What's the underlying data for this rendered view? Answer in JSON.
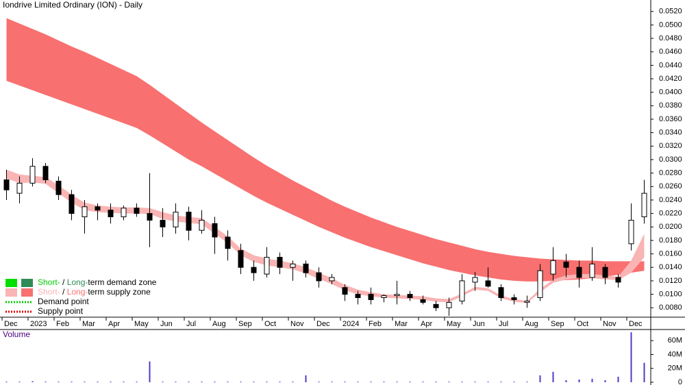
{
  "chart_data": [
    {
      "type": "candlestick",
      "title": "Iondrive Limited Ordinary (ION) - Daily",
      "categories": [
        "Dec",
        null,
        "2023",
        null,
        "Feb",
        null,
        "Mar",
        null,
        "Apr",
        null,
        "May",
        null,
        "Jun",
        null,
        "Jul",
        null,
        "Aug",
        null,
        "Sep",
        null,
        "Oct",
        null,
        "Nov",
        null,
        "Dec",
        null,
        "2024",
        null,
        "Feb",
        null,
        "Mar",
        null,
        "Apr",
        null,
        "May",
        null,
        "Jun",
        null,
        "Jul",
        null,
        "Aug",
        null,
        "Sep",
        null,
        "Oct",
        null,
        "Nov",
        null,
        "Dec",
        null
      ],
      "open": [
        0.027,
        0.025,
        0.0265,
        0.029,
        0.0268,
        0.0248,
        0.0215,
        0.023,
        0.0225,
        0.0215,
        0.0228,
        0.022,
        0.021,
        0.02,
        0.0222,
        0.0195,
        0.0205,
        0.0185,
        0.0165,
        0.014,
        0.013,
        0.0155,
        0.014,
        0.0145,
        0.0132,
        0.012,
        0.011,
        0.01,
        0.01,
        0.0095,
        0.0098,
        0.01,
        0.0092,
        0.0085,
        0.008,
        0.009,
        0.0118,
        0.012,
        0.011,
        0.0095,
        0.0088,
        0.0095,
        0.013,
        0.0148,
        0.014,
        0.0125,
        0.014,
        0.0125,
        0.0175,
        0.0215
      ],
      "high": [
        0.0285,
        0.0275,
        0.0302,
        0.0295,
        0.0275,
        0.0255,
        0.024,
        0.0235,
        0.0235,
        0.0232,
        0.0235,
        0.028,
        0.0228,
        0.0235,
        0.023,
        0.0225,
        0.0215,
        0.0195,
        0.0175,
        0.015,
        0.017,
        0.0162,
        0.015,
        0.015,
        0.014,
        0.013,
        0.0115,
        0.0105,
        0.011,
        0.01,
        0.012,
        0.0105,
        0.0098,
        0.009,
        0.0095,
        0.013,
        0.0133,
        0.014,
        0.0115,
        0.01,
        0.0098,
        0.0145,
        0.017,
        0.016,
        0.015,
        0.017,
        0.0145,
        0.013,
        0.0235,
        0.027
      ],
      "low": [
        0.024,
        0.0235,
        0.026,
        0.0265,
        0.024,
        0.021,
        0.019,
        0.021,
        0.0205,
        0.021,
        0.0215,
        0.017,
        0.0185,
        0.019,
        0.018,
        0.019,
        0.016,
        0.015,
        0.013,
        0.012,
        0.0125,
        0.013,
        0.012,
        0.0125,
        0.011,
        0.0115,
        0.009,
        0.0085,
        0.0085,
        0.0088,
        0.0085,
        0.009,
        0.0085,
        0.0075,
        0.0068,
        0.0085,
        0.0105,
        0.011,
        0.009,
        0.0085,
        0.008,
        0.009,
        0.012,
        0.0125,
        0.011,
        0.012,
        0.0115,
        0.011,
        0.0165,
        0.0205
      ],
      "close": [
        0.0255,
        0.0265,
        0.029,
        0.027,
        0.0248,
        0.022,
        0.023,
        0.0225,
        0.0215,
        0.0228,
        0.022,
        0.021,
        0.02,
        0.0222,
        0.0195,
        0.021,
        0.0185,
        0.0168,
        0.014,
        0.0132,
        0.0155,
        0.014,
        0.0145,
        0.0132,
        0.012,
        0.0125,
        0.01,
        0.0095,
        0.0092,
        0.0098,
        0.01,
        0.0095,
        0.0088,
        0.008,
        0.0088,
        0.012,
        0.0125,
        0.0112,
        0.0095,
        0.0092,
        0.009,
        0.0135,
        0.015,
        0.014,
        0.0125,
        0.0145,
        0.0125,
        0.0118,
        0.021,
        0.025
      ],
      "up_color": "#ffffff",
      "down_color": "#000000",
      "bands": [
        {
          "color": "#f87070",
          "upper": [
            0.051,
            0.0502,
            0.0494,
            0.0486,
            0.0477,
            0.0468,
            0.046,
            0.0451,
            0.0442,
            0.0433,
            0.0424,
            0.0411,
            0.0397,
            0.0383,
            0.0369,
            0.0355,
            0.0342,
            0.0329,
            0.0316,
            0.0303,
            0.0291,
            0.028,
            0.0269,
            0.0259,
            0.0249,
            0.0239,
            0.023,
            0.0222,
            0.0214,
            0.0207,
            0.02,
            0.0194,
            0.0188,
            0.0182,
            0.0177,
            0.0172,
            0.0167,
            0.0163,
            0.016,
            0.0157,
            0.0155,
            0.0153,
            0.0152,
            0.0151,
            0.015,
            0.015,
            0.0149,
            0.0149,
            0.0149,
            0.0149
          ],
          "lower": [
            0.0417,
            0.041,
            0.0403,
            0.0396,
            0.0389,
            0.0382,
            0.0375,
            0.0368,
            0.0361,
            0.0354,
            0.0347,
            0.0336,
            0.0324,
            0.0312,
            0.03,
            0.029,
            0.0279,
            0.0268,
            0.0257,
            0.0246,
            0.0236,
            0.0227,
            0.0218,
            0.0209,
            0.02,
            0.0192,
            0.0184,
            0.0177,
            0.017,
            0.0164,
            0.0158,
            0.0152,
            0.0146,
            0.0141,
            0.0136,
            0.0132,
            0.0128,
            0.0125,
            0.0122,
            0.012,
            0.0119,
            0.0119,
            0.012,
            0.0121,
            0.0122,
            0.0124,
            0.0126,
            0.0129,
            0.0132,
            0.0135
          ]
        },
        {
          "color": "#f9b4b4",
          "upper": [
            0.0285,
            0.0278,
            0.0276,
            0.0274,
            0.0262,
            0.0248,
            0.0236,
            0.0232,
            0.023,
            0.0229,
            0.0229,
            0.0228,
            0.0222,
            0.0217,
            0.0215,
            0.0213,
            0.02,
            0.0186,
            0.0168,
            0.0158,
            0.0153,
            0.015,
            0.0146,
            0.014,
            0.0132,
            0.0124,
            0.0114,
            0.0107,
            0.0103,
            0.01,
            0.0099,
            0.0098,
            0.0097,
            0.0094,
            0.0093,
            0.0101,
            0.0111,
            0.0109,
            0.0098,
            0.0093,
            0.009,
            0.0108,
            0.0122,
            0.0128,
            0.013,
            0.013,
            0.0128,
            0.0126,
            0.015,
            0.019
          ],
          "lower": [
            0.0272,
            0.0265,
            0.0266,
            0.0264,
            0.025,
            0.0236,
            0.0225,
            0.0222,
            0.0221,
            0.022,
            0.022,
            0.0219,
            0.0212,
            0.0208,
            0.0206,
            0.0204,
            0.019,
            0.0176,
            0.0158,
            0.0148,
            0.0143,
            0.014,
            0.0137,
            0.0131,
            0.0123,
            0.0115,
            0.0106,
            0.01,
            0.0097,
            0.0095,
            0.0094,
            0.0093,
            0.0092,
            0.0089,
            0.0088,
            0.0097,
            0.0107,
            0.0105,
            0.0094,
            0.0089,
            0.0087,
            0.0103,
            0.0117,
            0.0122,
            0.0124,
            0.0124,
            0.0122,
            0.0121,
            0.0132,
            0.0155
          ]
        }
      ],
      "ylim": [
        0.0066,
        0.0537
      ],
      "yticks": [
        {
          "value": 0.052,
          "label": "0.0520"
        },
        {
          "value": 0.05,
          "label": "0.0500"
        },
        {
          "value": 0.048,
          "label": "0.0480"
        },
        {
          "value": 0.046,
          "label": "0.0460"
        },
        {
          "value": 0.044,
          "label": "0.0440"
        },
        {
          "value": 0.042,
          "label": "0.0420"
        },
        {
          "value": 0.04,
          "label": "0.0400"
        },
        {
          "value": 0.038,
          "label": "0.0380"
        },
        {
          "value": 0.036,
          "label": "0.0360"
        },
        {
          "value": 0.034,
          "label": "0.0340"
        },
        {
          "value": 0.032,
          "label": "0.0320"
        },
        {
          "value": 0.03,
          "label": "0.0300"
        },
        {
          "value": 0.028,
          "label": "0.0280"
        },
        {
          "value": 0.026,
          "label": "0.0260"
        },
        {
          "value": 0.024,
          "label": "0.0240"
        },
        {
          "value": 0.022,
          "label": "0.0220"
        },
        {
          "value": 0.02,
          "label": "0.0200"
        },
        {
          "value": 0.018,
          "label": "0.0180"
        },
        {
          "value": 0.016,
          "label": "0.0160"
        },
        {
          "value": 0.014,
          "label": "0.0140"
        },
        {
          "value": 0.012,
          "label": "0.0120"
        },
        {
          "value": 0.01,
          "label": "0.0100"
        },
        {
          "value": 0.008,
          "label": "0.0080"
        }
      ],
      "grid": false,
      "legend_position": "bottom-left",
      "legend": [
        {
          "swatch": [
            "#00e000",
            "#2e8b57"
          ],
          "parts": [
            {
              "text": "Short-",
              "color": "#00cc00"
            },
            {
              "text": " / "
            },
            {
              "text": "Long-",
              "color": "#2e8b57"
            },
            {
              "text": "term demand zone"
            }
          ]
        },
        {
          "swatch": [
            "#f9b4b4",
            "#f87070"
          ],
          "parts": [
            {
              "text": "Short-",
              "color": "#f9b4b4"
            },
            {
              "text": " / "
            },
            {
              "text": "Long-",
              "color": "#f87070"
            },
            {
              "text": "term supply zone"
            }
          ]
        },
        {
          "line_color": "#00cc00",
          "parts": [
            {
              "text": "Demand point"
            }
          ]
        },
        {
          "line_color": "#e00000",
          "parts": [
            {
              "text": "Supply point"
            }
          ]
        }
      ]
    },
    {
      "type": "bar",
      "title": "Volume",
      "values": [
        1000000,
        1000000,
        1500000,
        1000000,
        1000000,
        1000000,
        1000000,
        1000000,
        1000000,
        1000000,
        1000000,
        30000000,
        1000000,
        1000000,
        1000000,
        1000000,
        1000000,
        1000000,
        1000000,
        1000000,
        1000000,
        1000000,
        1000000,
        10000000,
        1000000,
        1000000,
        1000000,
        1000000,
        1000000,
        1000000,
        1000000,
        1000000,
        1000000,
        1000000,
        1000000,
        1000000,
        1000000,
        1000000,
        1000000,
        1000000,
        1000000,
        10000000,
        15000000,
        3000000,
        4000000,
        5000000,
        3000000,
        8000000,
        72000000,
        28000000
      ],
      "color": "#4a3cc8",
      "ylim": [
        0,
        76000000
      ],
      "yticks": [
        0,
        {
          "value": 20000000,
          "label": "20M"
        },
        {
          "value": 40000000,
          "label": "40M"
        },
        {
          "value": 60000000,
          "label": "60M"
        }
      ]
    }
  ]
}
